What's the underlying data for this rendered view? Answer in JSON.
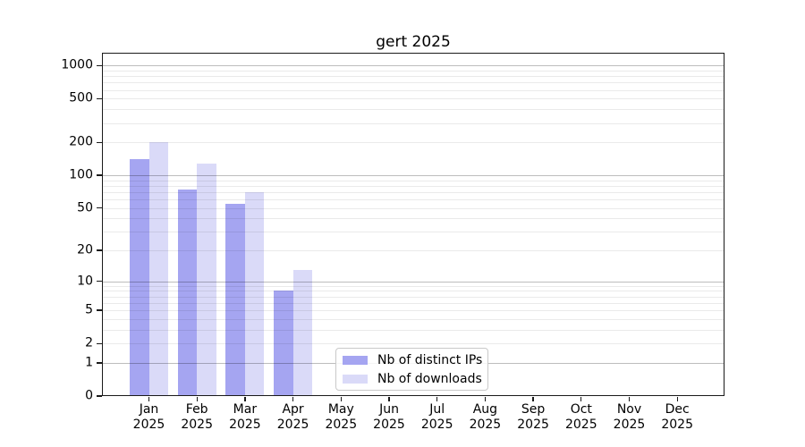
{
  "chart_data": {
    "type": "bar",
    "title": "gert 2025",
    "x": {
      "months": [
        "Jan",
        "Feb",
        "Mar",
        "Apr",
        "May",
        "Jun",
        "Jul",
        "Aug",
        "Sep",
        "Oct",
        "Nov",
        "Dec"
      ],
      "year_label": "2025"
    },
    "y_axis": {
      "scale": "log10(1+y)",
      "tick_labels": [
        "0",
        "1",
        "2",
        "5",
        "10",
        "20",
        "50",
        "100",
        "200",
        "500",
        "1000"
      ],
      "ylim": [
        0,
        1300
      ],
      "grid": "horizontal, major and minor, drawn over bars"
    },
    "series": [
      {
        "name": "Nb of distinct IPs",
        "color": "#a5a5f1",
        "values": [
          140,
          74,
          55,
          8,
          0,
          0,
          0,
          0,
          0,
          0,
          0,
          0
        ]
      },
      {
        "name": "Nb of downloads",
        "color": "#dadaf8",
        "values": [
          200,
          127,
          70,
          13,
          0,
          0,
          0,
          0,
          0,
          0,
          0,
          0
        ]
      }
    ],
    "legend": {
      "position": "lower-center",
      "entries": [
        "Nb of distinct IPs",
        "Nb of downloads"
      ]
    },
    "colors": {
      "grid_major": "#bfbfbf",
      "grid_minor": "#e9e9e9",
      "spine": "#1a1a1a",
      "text": "#000000"
    }
  }
}
